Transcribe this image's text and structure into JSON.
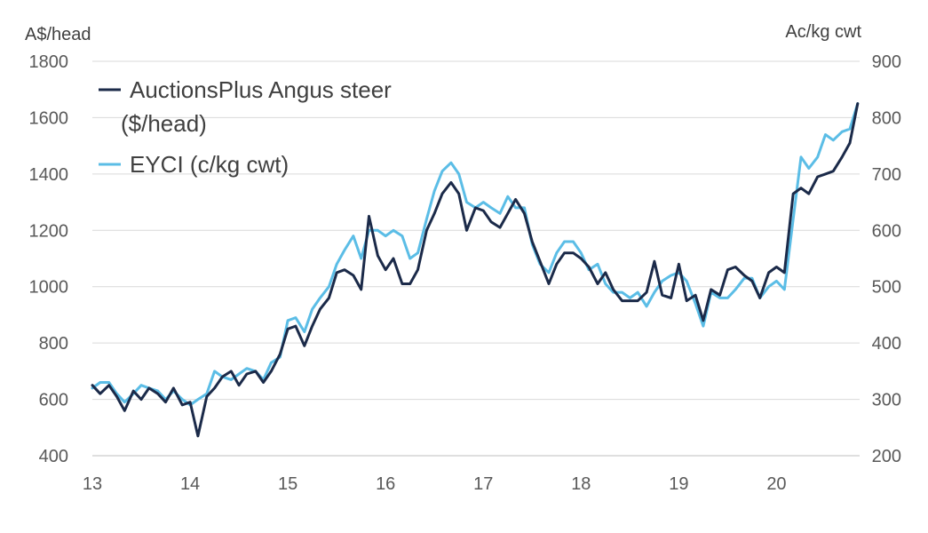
{
  "chart_data": {
    "type": "line",
    "left_unit": "A$/head",
    "right_unit": "Ac/kg cwt",
    "ylim_left": [
      400,
      1800
    ],
    "ylim_right": [
      200,
      900
    ],
    "y_ticks_left": [
      "400",
      "600",
      "800",
      "1000",
      "1200",
      "1400",
      "1600",
      "1800"
    ],
    "y_ticks_right": [
      "200",
      "300",
      "400",
      "500",
      "600",
      "700",
      "800",
      "900"
    ],
    "x_ticks": [
      "13",
      "14",
      "15",
      "16",
      "17",
      "18",
      "19",
      "20"
    ],
    "xlim": [
      13,
      20.85
    ],
    "grid": true,
    "legend": {
      "position": "top-left",
      "entries": [
        {
          "line1": "AuctionsPlus Angus steer",
          "line2": "($/head)"
        },
        {
          "line1": "EYCI (c/kg cwt)",
          "line2": ""
        }
      ]
    },
    "series": [
      {
        "name": "AuctionsPlus Angus steer ($/head)",
        "axis": "left",
        "color": "#1b2a49",
        "x": [
          13.0,
          13.08,
          13.17,
          13.25,
          13.33,
          13.42,
          13.5,
          13.58,
          13.67,
          13.75,
          13.83,
          13.92,
          14.0,
          14.08,
          14.17,
          14.25,
          14.33,
          14.42,
          14.5,
          14.58,
          14.67,
          14.75,
          14.83,
          14.92,
          15.0,
          15.08,
          15.17,
          15.25,
          15.33,
          15.42,
          15.5,
          15.58,
          15.67,
          15.75,
          15.83,
          15.92,
          16.0,
          16.08,
          16.17,
          16.25,
          16.33,
          16.42,
          16.5,
          16.58,
          16.67,
          16.75,
          16.83,
          16.92,
          17.0,
          17.08,
          17.17,
          17.25,
          17.33,
          17.42,
          17.5,
          17.58,
          17.67,
          17.75,
          17.83,
          17.92,
          18.0,
          18.08,
          18.17,
          18.25,
          18.33,
          18.42,
          18.5,
          18.58,
          18.67,
          18.75,
          18.83,
          18.92,
          19.0,
          19.08,
          19.17,
          19.25,
          19.33,
          19.42,
          19.5,
          19.58,
          19.67,
          19.75,
          19.83,
          19.92,
          20.0,
          20.08,
          20.17,
          20.25,
          20.33,
          20.42,
          20.5,
          20.58,
          20.67,
          20.75,
          20.83
        ],
        "values": [
          650,
          620,
          650,
          610,
          560,
          630,
          600,
          640,
          620,
          590,
          640,
          580,
          590,
          470,
          610,
          640,
          680,
          700,
          650,
          690,
          700,
          660,
          700,
          760,
          850,
          860,
          790,
          860,
          920,
          960,
          1050,
          1060,
          1040,
          990,
          1250,
          1110,
          1060,
          1100,
          1010,
          1010,
          1060,
          1200,
          1260,
          1330,
          1370,
          1330,
          1200,
          1280,
          1270,
          1230,
          1210,
          1260,
          1310,
          1260,
          1160,
          1090,
          1010,
          1080,
          1120,
          1120,
          1100,
          1070,
          1010,
          1050,
          990,
          950,
          950,
          950,
          980,
          1090,
          970,
          960,
          1080,
          950,
          970,
          880,
          990,
          970,
          1060,
          1070,
          1040,
          1020,
          960,
          1050,
          1070,
          1050,
          1330,
          1350,
          1330,
          1390,
          1400,
          1410,
          1460,
          1510,
          1650
        ]
      },
      {
        "name": "EYCI (c/kg cwt)",
        "axis": "right",
        "color": "#5bbde6",
        "x": [
          13.0,
          13.08,
          13.17,
          13.25,
          13.33,
          13.42,
          13.5,
          13.58,
          13.67,
          13.75,
          13.83,
          13.92,
          14.0,
          14.08,
          14.17,
          14.25,
          14.33,
          14.42,
          14.5,
          14.58,
          14.67,
          14.75,
          14.83,
          14.92,
          15.0,
          15.08,
          15.17,
          15.25,
          15.33,
          15.42,
          15.5,
          15.58,
          15.67,
          15.75,
          15.83,
          15.92,
          16.0,
          16.08,
          16.17,
          16.25,
          16.33,
          16.42,
          16.5,
          16.58,
          16.67,
          16.75,
          16.83,
          16.92,
          17.0,
          17.08,
          17.17,
          17.25,
          17.33,
          17.42,
          17.5,
          17.58,
          17.67,
          17.75,
          17.83,
          17.92,
          18.0,
          18.08,
          18.17,
          18.25,
          18.33,
          18.42,
          18.5,
          18.58,
          18.67,
          18.75,
          18.83,
          18.92,
          19.0,
          19.08,
          19.17,
          19.25,
          19.33,
          19.42,
          19.5,
          19.58,
          19.67,
          19.75,
          19.83,
          19.92,
          20.0,
          20.08,
          20.17,
          20.25,
          20.33,
          20.42,
          20.5,
          20.58,
          20.67,
          20.75,
          20.83
        ],
        "values": [
          320,
          330,
          330,
          310,
          295,
          310,
          325,
          320,
          315,
          300,
          315,
          300,
          290,
          300,
          310,
          350,
          340,
          335,
          345,
          355,
          350,
          335,
          365,
          375,
          440,
          445,
          420,
          460,
          480,
          500,
          540,
          565,
          590,
          550,
          600,
          600,
          590,
          600,
          590,
          550,
          560,
          620,
          670,
          705,
          720,
          700,
          650,
          640,
          650,
          640,
          630,
          660,
          640,
          640,
          575,
          540,
          525,
          560,
          580,
          580,
          560,
          530,
          540,
          505,
          490,
          490,
          480,
          490,
          465,
          490,
          510,
          520,
          525,
          510,
          470,
          430,
          490,
          480,
          480,
          495,
          515,
          515,
          480,
          500,
          510,
          495,
          620,
          730,
          710,
          730,
          770,
          760,
          775,
          780,
          825
        ]
      }
    ]
  }
}
